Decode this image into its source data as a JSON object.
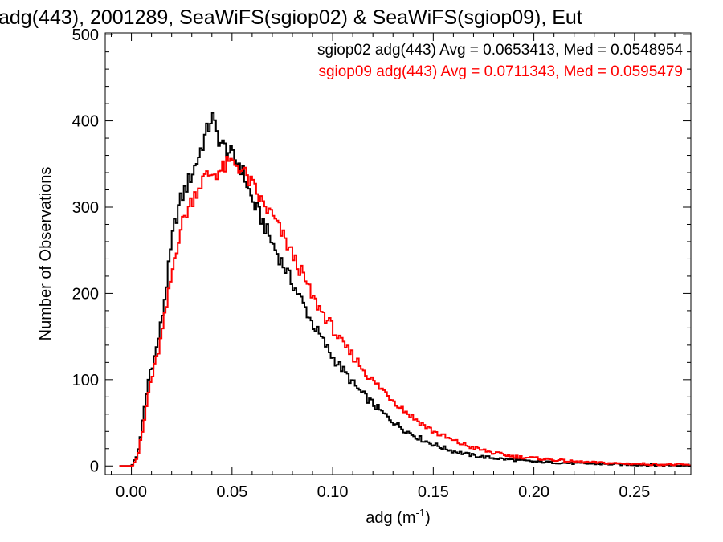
{
  "chart_data": {
    "type": "histogram",
    "title": "adg(443), 2001289, SeaWiFS(sgiop02) & SeaWiFS(sgiop09), Eut",
    "xlabel": "adg (m",
    "xlabel_sup": "-1",
    "xlabel_close": ")",
    "ylabel": "Number of Observations",
    "xlim": [
      -0.013,
      0.278
    ],
    "ylim": [
      -10,
      502
    ],
    "x_ticks": [
      "0.00",
      "0.05",
      "0.10",
      "0.15",
      "0.20",
      "0.25"
    ],
    "y_ticks": [
      "0",
      "100",
      "200",
      "300",
      "400",
      "500"
    ],
    "grid": false,
    "legend_position": "top-right",
    "legend": [
      "sgiop02 adg(443) Avg = 0.0653413, Med = 0.0548954",
      "sgiop09 adg(443) Avg = 0.0711343, Med = 0.0595479"
    ],
    "series": [
      {
        "name": "sgiop02",
        "color": "#000000",
        "points": [
          [
            0.0,
            0
          ],
          [
            0.003,
            12
          ],
          [
            0.006,
            58
          ],
          [
            0.009,
            108
          ],
          [
            0.012,
            130
          ],
          [
            0.015,
            168
          ],
          [
            0.018,
            220
          ],
          [
            0.021,
            275
          ],
          [
            0.024,
            305
          ],
          [
            0.027,
            322
          ],
          [
            0.03,
            338
          ],
          [
            0.033,
            356
          ],
          [
            0.036,
            378
          ],
          [
            0.039,
            396
          ],
          [
            0.04,
            408
          ],
          [
            0.042,
            388
          ],
          [
            0.045,
            372
          ],
          [
            0.048,
            366
          ],
          [
            0.051,
            356
          ],
          [
            0.054,
            350
          ],
          [
            0.057,
            330
          ],
          [
            0.06,
            308
          ],
          [
            0.065,
            285
          ],
          [
            0.07,
            258
          ],
          [
            0.075,
            235
          ],
          [
            0.08,
            212
          ],
          [
            0.085,
            190
          ],
          [
            0.09,
            165
          ],
          [
            0.095,
            146
          ],
          [
            0.1,
            126
          ],
          [
            0.105,
            112
          ],
          [
            0.11,
            96
          ],
          [
            0.115,
            83
          ],
          [
            0.12,
            72
          ],
          [
            0.125,
            61
          ],
          [
            0.13,
            52
          ],
          [
            0.135,
            43
          ],
          [
            0.14,
            36
          ],
          [
            0.145,
            30
          ],
          [
            0.15,
            25
          ],
          [
            0.16,
            17
          ],
          [
            0.17,
            12
          ],
          [
            0.18,
            9
          ],
          [
            0.19,
            7
          ],
          [
            0.2,
            5
          ],
          [
            0.21,
            4
          ],
          [
            0.22,
            3
          ],
          [
            0.24,
            2
          ],
          [
            0.26,
            1
          ],
          [
            0.278,
            1
          ]
        ]
      },
      {
        "name": "sgiop09",
        "color": "#ff0000",
        "points": [
          [
            0.0,
            0
          ],
          [
            0.003,
            10
          ],
          [
            0.006,
            45
          ],
          [
            0.009,
            92
          ],
          [
            0.012,
            118
          ],
          [
            0.015,
            150
          ],
          [
            0.018,
            192
          ],
          [
            0.021,
            235
          ],
          [
            0.024,
            272
          ],
          [
            0.027,
            292
          ],
          [
            0.03,
            308
          ],
          [
            0.033,
            322
          ],
          [
            0.036,
            333
          ],
          [
            0.039,
            338
          ],
          [
            0.042,
            340
          ],
          [
            0.045,
            343
          ],
          [
            0.048,
            350
          ],
          [
            0.051,
            352
          ],
          [
            0.054,
            346
          ],
          [
            0.057,
            336
          ],
          [
            0.06,
            326
          ],
          [
            0.065,
            305
          ],
          [
            0.07,
            290
          ],
          [
            0.075,
            268
          ],
          [
            0.08,
            245
          ],
          [
            0.085,
            222
          ],
          [
            0.09,
            195
          ],
          [
            0.095,
            178
          ],
          [
            0.1,
            160
          ],
          [
            0.105,
            140
          ],
          [
            0.11,
            128
          ],
          [
            0.115,
            113
          ],
          [
            0.12,
            98
          ],
          [
            0.125,
            88
          ],
          [
            0.13,
            77
          ],
          [
            0.135,
            66
          ],
          [
            0.14,
            56
          ],
          [
            0.145,
            48
          ],
          [
            0.15,
            40
          ],
          [
            0.16,
            29
          ],
          [
            0.17,
            21
          ],
          [
            0.18,
            15
          ],
          [
            0.19,
            11
          ],
          [
            0.2,
            9
          ],
          [
            0.21,
            7
          ],
          [
            0.22,
            5
          ],
          [
            0.24,
            3
          ],
          [
            0.26,
            2
          ],
          [
            0.278,
            1
          ]
        ]
      }
    ]
  }
}
